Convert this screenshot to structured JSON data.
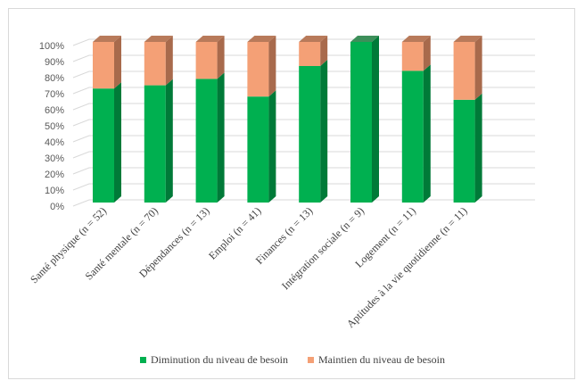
{
  "chart_data": {
    "type": "bar",
    "stacked": true,
    "three_d": true,
    "categories": [
      "Santé physique (n = 52)",
      "Santé mentale (n = 70)",
      "Dépendances (n = 13)",
      "Emploi (n = 41)",
      "Finances (n = 13)",
      "Intégration sociale (n = 9)",
      "Logement (n = 11)",
      "Aptitudes à la vie quotidienne (n = 11)"
    ],
    "series": [
      {
        "name": "Diminution du niveau de besoin",
        "color": "#00b050",
        "side_color": "#007a38",
        "values": [
          71,
          73,
          77,
          66,
          85,
          100,
          82,
          64
        ]
      },
      {
        "name": "Maintien du niveau de besoin",
        "color": "#f4a076",
        "side_color": "#a86a4c",
        "values": [
          29,
          27,
          23,
          34,
          15,
          0,
          18,
          36
        ]
      }
    ],
    "ylim": [
      0,
      100
    ],
    "yticks": [
      "0%",
      "10%",
      "20%",
      "30%",
      "40%",
      "50%",
      "60%",
      "70%",
      "80%",
      "90%",
      "100%"
    ],
    "grid": true,
    "legend_position": "bottom",
    "title": "",
    "xlabel": "",
    "ylabel": ""
  }
}
